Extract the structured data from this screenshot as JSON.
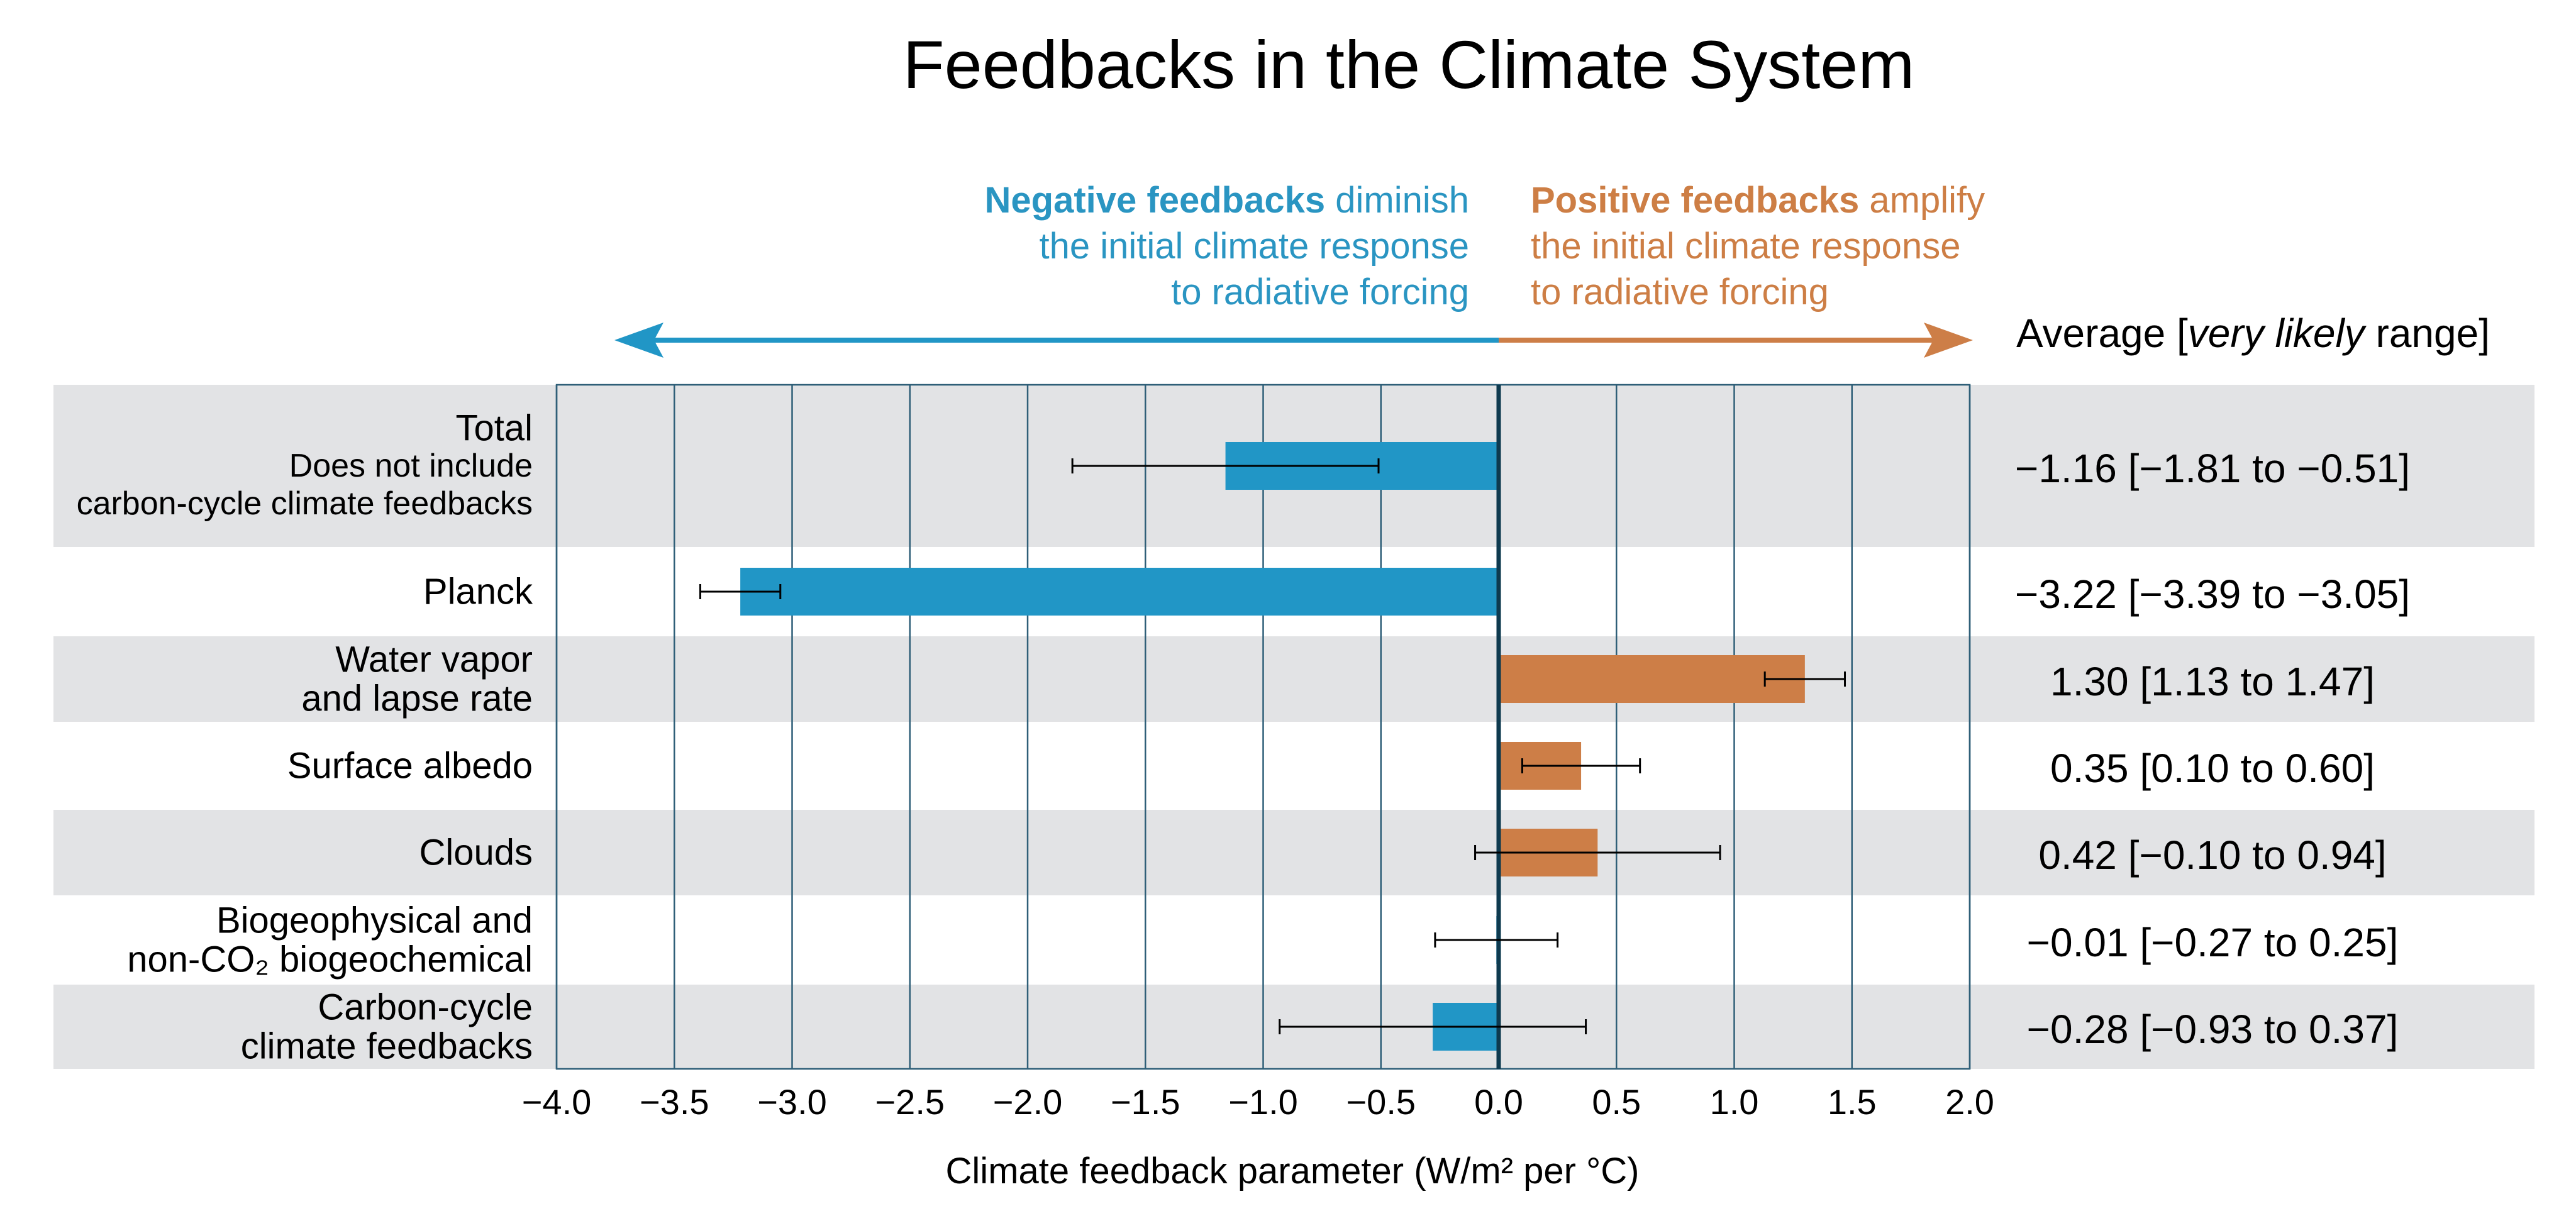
{
  "title": "Feedbacks in the Climate System",
  "negative_annotation": {
    "bold": "Negative feedbacks",
    "line1_rest": " diminish",
    "line2": "the initial climate response",
    "line3": "to radiative forcing"
  },
  "positive_annotation": {
    "bold": "Positive feedbacks",
    "line1_rest": " amplify",
    "line2": "the initial climate response",
    "line3": "to radiative forcing"
  },
  "range_header": {
    "prefix": "Average [",
    "italic": "very likely",
    "suffix": " range]"
  },
  "colors": {
    "negative": "#2196c6",
    "positive": "#cd7e47",
    "band": "#e2e3e5",
    "grid": "#2f5f78",
    "zero_line": "#0e3a4f"
  },
  "chart_data": {
    "type": "bar",
    "orientation": "horizontal",
    "xlabel": "Climate feedback parameter (W/m² per °C)",
    "xlim": [
      -4.0,
      2.0
    ],
    "xticks": [
      -4.0,
      -3.5,
      -3.0,
      -2.5,
      -2.0,
      -1.5,
      -1.0,
      -0.5,
      0.0,
      0.5,
      1.0,
      1.5,
      2.0
    ],
    "xtick_labels": [
      "−4.0",
      "−3.5",
      "−3.0",
      "−2.5",
      "−2.0",
      "−1.5",
      "−1.0",
      "−0.5",
      "0.0",
      "0.5",
      "1.0",
      "1.5",
      "2.0"
    ],
    "grid": true,
    "categories": [
      {
        "lines": [
          "Total",
          "Does not include",
          "carbon-cycle climate feedbacks"
        ],
        "value": -1.16,
        "low": -1.81,
        "high": -0.51,
        "range_text": "−1.16 [−1.81 to −0.51]"
      },
      {
        "lines": [
          "Planck"
        ],
        "value": -3.22,
        "low": -3.39,
        "high": -3.05,
        "range_text": "−3.22 [−3.39 to −3.05]"
      },
      {
        "lines": [
          "Water vapor",
          "and lapse rate"
        ],
        "value": 1.3,
        "low": 1.13,
        "high": 1.47,
        "range_text": "1.30 [1.13 to 1.47]"
      },
      {
        "lines": [
          "Surface albedo"
        ],
        "value": 0.35,
        "low": 0.1,
        "high": 0.6,
        "range_text": "0.35 [0.10 to 0.60]"
      },
      {
        "lines": [
          "Clouds"
        ],
        "value": 0.42,
        "low": -0.1,
        "high": 0.94,
        "range_text": "0.42 [−0.10 to 0.94]"
      },
      {
        "lines": [
          "Biogeophysical and",
          "non-CO₂ biogeochemical"
        ],
        "value": -0.01,
        "low": -0.27,
        "high": 0.25,
        "range_text": "−0.01 [−0.27 to 0.25]"
      },
      {
        "lines": [
          "Carbon-cycle",
          "climate feedbacks"
        ],
        "value": -0.28,
        "low": -0.93,
        "high": 0.37,
        "range_text": "−0.28 [−0.93 to 0.37]"
      }
    ]
  }
}
